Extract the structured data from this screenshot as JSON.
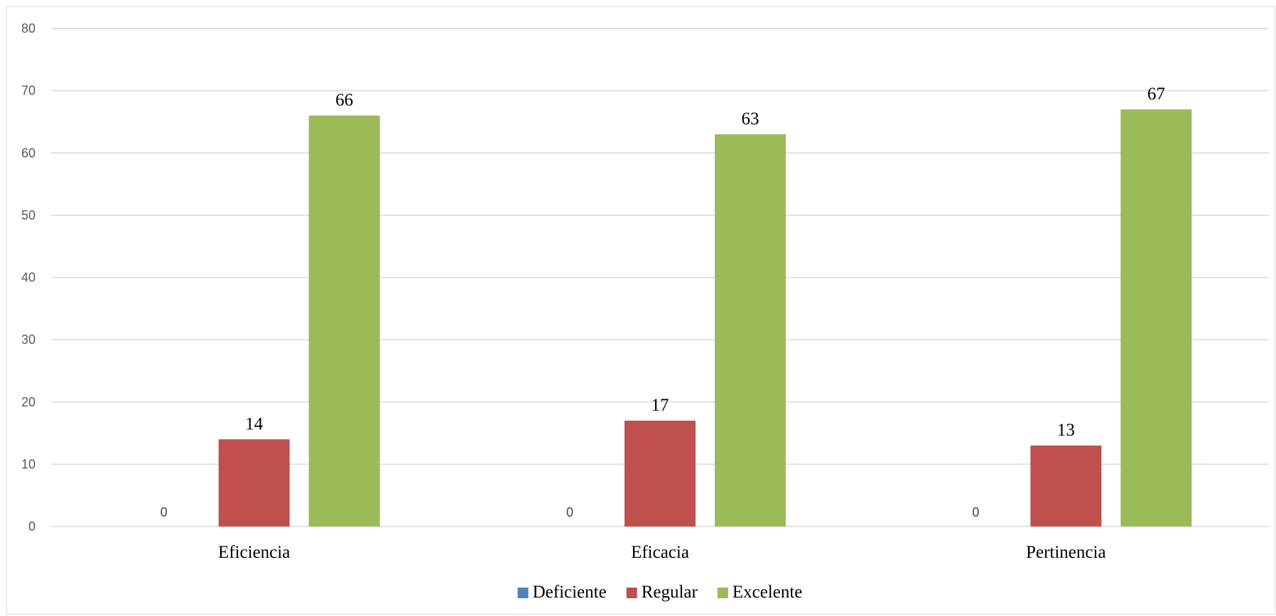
{
  "chart_data": {
    "type": "bar",
    "categories": [
      "Eficiencia",
      "Eficacia",
      "Pertinencia"
    ],
    "series": [
      {
        "name": "Deficiente",
        "values": [
          0,
          0,
          0
        ],
        "color": "#4f81bd"
      },
      {
        "name": "Regular",
        "values": [
          14,
          17,
          13
        ],
        "color": "#c0504d"
      },
      {
        "name": "Excelente",
        "values": [
          66,
          63,
          67
        ],
        "color": "#9bbb59"
      }
    ],
    "ylim": [
      0,
      80
    ],
    "yticks": [
      0,
      10,
      20,
      30,
      40,
      50,
      60,
      70,
      80
    ],
    "grid": true,
    "legend_position": "bottom",
    "title": "",
    "xlabel": "",
    "ylabel": "",
    "gridline_color": "#d9d9d9"
  }
}
